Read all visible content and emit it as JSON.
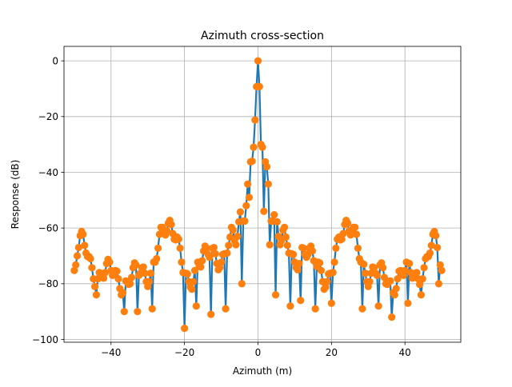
{
  "chart_data": {
    "type": "line",
    "title": "Azimuth cross-section",
    "xlabel": "Azimuth (m)",
    "ylabel": "Response (dB)",
    "xlim": [
      -52.8,
      55.2
    ],
    "ylim": [
      -101,
      5.2
    ],
    "xticks": [
      -40,
      -20,
      0,
      20,
      40
    ],
    "yticks": [
      0,
      -20,
      -40,
      -60,
      -80,
      -100
    ],
    "xtick_labels": [
      "−40",
      "−20",
      "0",
      "20",
      "40"
    ],
    "ytick_labels": [
      "0",
      "−20",
      "−40",
      "−60",
      "−80",
      "−100"
    ],
    "grid": true,
    "x_range": [
      -50,
      50
    ],
    "sample_spacing": 0.4,
    "colors": {
      "line": "#1f77b4",
      "marker": "#ff7f0e"
    },
    "envelope": [
      [
        -50,
        -74
      ],
      [
        -49.2,
        -65
      ],
      [
        -48.4,
        -61.5
      ],
      [
        -47.6,
        -61
      ],
      [
        -46.8,
        -64
      ],
      [
        -46,
        -69
      ],
      [
        -45.2,
        -73
      ],
      [
        -44.4,
        -76
      ],
      [
        -43.6,
        -77
      ],
      [
        -42.8,
        -75
      ],
      [
        -42,
        -73
      ],
      [
        -41.2,
        -71.5
      ],
      [
        -40.4,
        -71
      ],
      [
        -39.6,
        -72
      ],
      [
        -38.8,
        -74
      ],
      [
        -38,
        -77
      ],
      [
        -37.2,
        -79
      ],
      [
        -36.4,
        -80
      ],
      [
        -35.6,
        -78
      ],
      [
        -34.8,
        -75
      ],
      [
        -34,
        -73
      ],
      [
        -33.2,
        -72
      ],
      [
        -32.4,
        -72
      ],
      [
        -31.6,
        -73
      ],
      [
        -30.8,
        -75
      ],
      [
        -30,
        -76
      ],
      [
        -29.2,
        -75
      ],
      [
        -28.4,
        -71
      ],
      [
        -27.6,
        -66
      ],
      [
        -26.8,
        -61
      ],
      [
        -26,
        -58.5
      ],
      [
        -25.2,
        -57.5
      ],
      [
        -24.4,
        -57
      ],
      [
        -23.6,
        -57.5
      ],
      [
        -22.8,
        -59
      ],
      [
        -22,
        -62
      ],
      [
        -21.2,
        -66
      ],
      [
        -20.4,
        -71
      ],
      [
        -19.6,
        -75
      ],
      [
        -18.8,
        -78
      ],
      [
        -18,
        -77
      ],
      [
        -17.2,
        -74
      ],
      [
        -16.4,
        -71
      ],
      [
        -15.6,
        -69
      ],
      [
        -14.8,
        -67
      ],
      [
        -14,
        -66
      ],
      [
        -13.2,
        -65.5
      ],
      [
        -12.4,
        -66
      ],
      [
        -11.6,
        -68
      ],
      [
        -10.8,
        -70
      ],
      [
        -10,
        -71
      ],
      [
        -9.2,
        -68
      ],
      [
        -8.4,
        -64
      ],
      [
        -7.6,
        -61
      ],
      [
        -6.8,
        -58.5
      ],
      [
        -6,
        -57
      ],
      [
        -5.2,
        -55.5
      ],
      [
        -4.4,
        -53
      ],
      [
        -3.6,
        -48.5
      ],
      [
        -2.8,
        -42
      ],
      [
        -2,
        -34
      ],
      [
        -1.2,
        -22
      ],
      [
        -0.4,
        -7
      ],
      [
        0,
        0
      ],
      [
        0.4,
        -7
      ],
      [
        1.2,
        -22
      ],
      [
        2,
        -34
      ],
      [
        2.8,
        -42
      ],
      [
        3.6,
        -48.5
      ],
      [
        4.4,
        -53
      ],
      [
        5.2,
        -55.5
      ],
      [
        6,
        -57
      ],
      [
        6.8,
        -58.5
      ],
      [
        7.6,
        -61
      ],
      [
        8.4,
        -64
      ],
      [
        9.2,
        -68
      ],
      [
        10,
        -71
      ],
      [
        10.8,
        -70
      ],
      [
        11.6,
        -68
      ],
      [
        12.4,
        -66
      ],
      [
        13.2,
        -65.5
      ],
      [
        14,
        -66
      ],
      [
        14.8,
        -67
      ],
      [
        15.6,
        -69
      ],
      [
        16.4,
        -71
      ],
      [
        17.2,
        -74
      ],
      [
        18,
        -77
      ],
      [
        18.8,
        -78
      ],
      [
        19.6,
        -75
      ],
      [
        20.4,
        -71
      ],
      [
        21.2,
        -66
      ],
      [
        22,
        -62
      ],
      [
        22.8,
        -59
      ],
      [
        23.6,
        -57.5
      ],
      [
        24.4,
        -57
      ],
      [
        25.2,
        -57.5
      ],
      [
        26,
        -58.5
      ],
      [
        26.8,
        -61
      ],
      [
        27.6,
        -66
      ],
      [
        28.4,
        -71
      ],
      [
        29.2,
        -75
      ],
      [
        30,
        -76
      ],
      [
        30.8,
        -75
      ],
      [
        31.6,
        -73
      ],
      [
        32.4,
        -72
      ],
      [
        33.2,
        -72
      ],
      [
        34,
        -73
      ],
      [
        34.8,
        -75
      ],
      [
        35.6,
        -78
      ],
      [
        36.4,
        -80
      ],
      [
        37.2,
        -79
      ],
      [
        38,
        -77
      ],
      [
        38.8,
        -74
      ],
      [
        39.6,
        -72
      ],
      [
        40.4,
        -71
      ],
      [
        41.2,
        -71.5
      ],
      [
        42,
        -73
      ],
      [
        42.8,
        -75
      ],
      [
        43.6,
        -77
      ],
      [
        44.4,
        -76
      ],
      [
        45.2,
        -73
      ],
      [
        46,
        -69
      ],
      [
        46.8,
        -64
      ],
      [
        47.6,
        -61
      ],
      [
        48.4,
        -61.5
      ],
      [
        49.2,
        -65
      ],
      [
        50,
        -74
      ]
    ],
    "notches": [
      [
        -44.0,
        -84
      ],
      [
        -36.4,
        -90
      ],
      [
        -32.8,
        -90
      ],
      [
        -28.8,
        -89
      ],
      [
        -20.0,
        -96
      ],
      [
        -16.8,
        -88
      ],
      [
        -12.8,
        -91
      ],
      [
        -8.8,
        -89
      ],
      [
        -4.4,
        -80
      ],
      [
        -2.4,
        -49
      ],
      [
        -1.6,
        -36
      ],
      [
        0.8,
        -30
      ],
      [
        1.6,
        -54
      ],
      [
        3.2,
        -66
      ],
      [
        4.8,
        -84
      ],
      [
        8.8,
        -88
      ],
      [
        11.6,
        -86
      ],
      [
        15.6,
        -89
      ],
      [
        20.0,
        -87
      ],
      [
        28.4,
        -89
      ],
      [
        32.8,
        -88
      ],
      [
        36.4,
        -92
      ],
      [
        40.8,
        -87
      ],
      [
        44.4,
        -84
      ],
      [
        49.2,
        -80
      ]
    ]
  }
}
